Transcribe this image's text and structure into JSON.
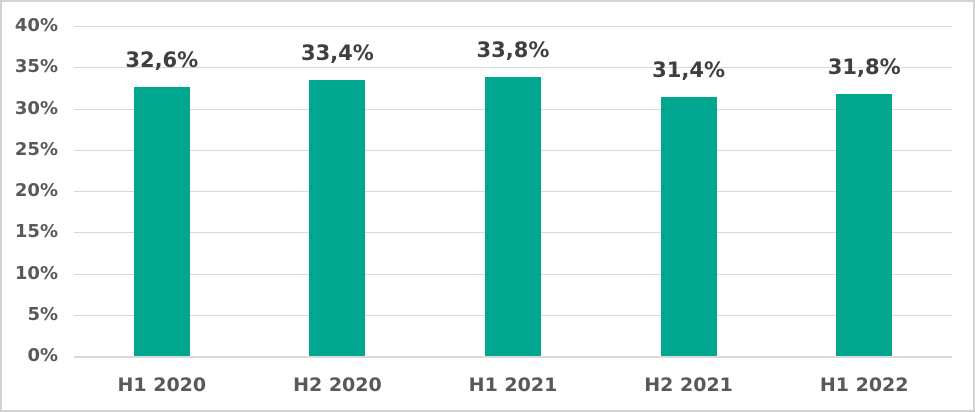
{
  "chart_data": {
    "type": "bar",
    "title": "",
    "xlabel": "",
    "ylabel": "",
    "categories": [
      "H1 2020",
      "H2 2020",
      "H1 2021",
      "H2 2021",
      "H1 2022"
    ],
    "values": [
      32.6,
      33.4,
      33.8,
      31.4,
      31.8
    ],
    "data_labels": [
      "32,6%",
      "33,4%",
      "33,8%",
      "31,4%",
      "31,8%"
    ],
    "y_ticks": [
      {
        "label": "40%",
        "value": 40
      },
      {
        "label": "35%",
        "value": 35
      },
      {
        "label": "30%",
        "value": 30
      },
      {
        "label": "25%",
        "value": 25
      },
      {
        "label": "20%",
        "value": 20
      },
      {
        "label": "15%",
        "value": 15
      },
      {
        "label": "10%",
        "value": 10
      },
      {
        "label": "5%",
        "value": 5
      },
      {
        "label": "0%",
        "value": 0
      }
    ],
    "ylim": [
      0,
      40
    ],
    "grid": true,
    "legend": false,
    "colors": {
      "bar": "#00a78e",
      "gridline": "#d9d9d9",
      "axis_line": "#d9d9d9",
      "tick_label": "#595959",
      "data_label": "#3f3f3f",
      "frame_border": "#d2d2d2",
      "background": "#ffffff"
    }
  }
}
